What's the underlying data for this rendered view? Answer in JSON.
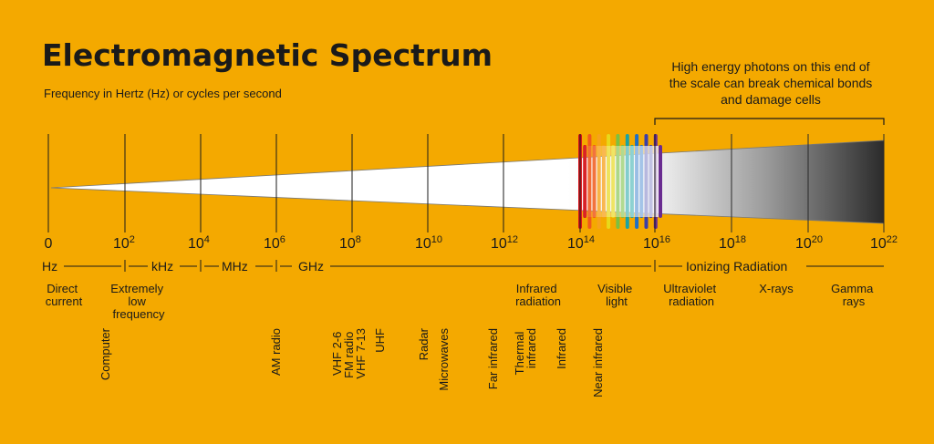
{
  "title": "Electromagnetic Spectrum",
  "subtitle": "Frequency in Hertz (Hz) or cycles per second",
  "note_lines": [
    "High energy photons on this end of",
    "the scale can break chemical bonds",
    "and damage cells"
  ],
  "scale": [
    {
      "base": "0",
      "exp": ""
    },
    {
      "base": "10",
      "exp": "2"
    },
    {
      "base": "10",
      "exp": "4"
    },
    {
      "base": "10",
      "exp": "6"
    },
    {
      "base": "10",
      "exp": "8"
    },
    {
      "base": "10",
      "exp": "10"
    },
    {
      "base": "10",
      "exp": "12"
    },
    {
      "base": "10",
      "exp": "14"
    },
    {
      "base": "10",
      "exp": "16"
    },
    {
      "base": "10",
      "exp": "18"
    },
    {
      "base": "10",
      "exp": "20"
    },
    {
      "base": "10",
      "exp": "22"
    }
  ],
  "units": [
    "Hz",
    "kHz",
    "MHz",
    "GHz"
  ],
  "ionizing_label": "Ionizing Radiation",
  "categories": [
    [
      "Direct",
      "current"
    ],
    [
      "Extremely",
      "low",
      "frequency"
    ],
    [
      "Infrared",
      "radiation"
    ],
    [
      "Visible",
      "light"
    ],
    [
      "Ultraviolet",
      "radiation"
    ],
    [
      "X-rays"
    ],
    [
      "Gamma",
      "rays"
    ]
  ],
  "applications": [
    [
      "Computer"
    ],
    [
      "AM radio"
    ],
    [
      "VHF 2-6",
      "FM radio",
      "VHF 7-13"
    ],
    [
      "UHF"
    ],
    [
      "Radar"
    ],
    [
      "Microwaves"
    ],
    [
      "Far infrared"
    ],
    [
      "Thermal",
      "infrared"
    ],
    [
      "Infrared"
    ],
    [
      "Near infrared"
    ]
  ],
  "colors": {
    "background": "#F4A900",
    "ink": "#1a1a1a",
    "spectrum": [
      "#d7141a",
      "#f05a1c",
      "#f7a21b",
      "#e8d81a",
      "#7bc043",
      "#1aa3a3",
      "#1f6fc6",
      "#3b3fa8",
      "#6a2c91"
    ]
  }
}
